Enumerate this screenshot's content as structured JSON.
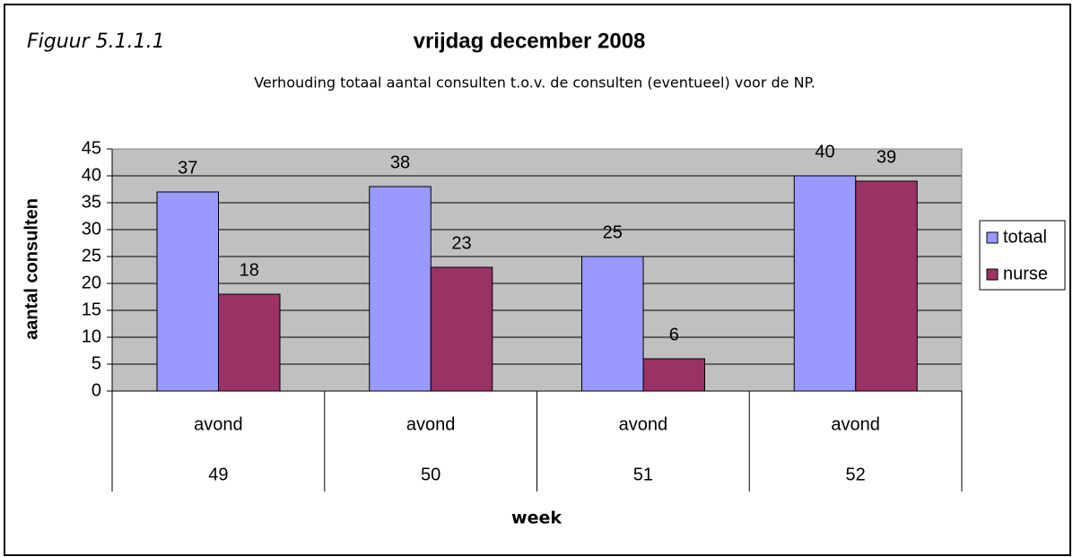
{
  "chart_data": {
    "type": "bar",
    "figure_label": "Figuur 5.1.1.1",
    "title": "vrijdag december 2008",
    "subtitle": "Verhouding totaal aantal consulten t.o.v. de consulten (eventueel) voor de NP.",
    "x_label": "week",
    "y_label": "aantal consulten",
    "categories": [
      [
        "avond",
        "49"
      ],
      [
        "avond",
        "50"
      ],
      [
        "avond",
        "51"
      ],
      [
        "avond",
        "52"
      ]
    ],
    "series": [
      {
        "name": "totaal",
        "color": "#9999ff",
        "values": [
          37,
          38,
          25,
          40
        ]
      },
      {
        "name": "nurse",
        "color": "#993366",
        "values": [
          18,
          23,
          6,
          39
        ]
      }
    ],
    "ylim": [
      0,
      45
    ],
    "yticks": [
      0,
      5,
      10,
      15,
      20,
      25,
      30,
      35,
      40,
      45
    ],
    "grid": true,
    "legend": "right",
    "plot_background": "#c0c0c0"
  }
}
